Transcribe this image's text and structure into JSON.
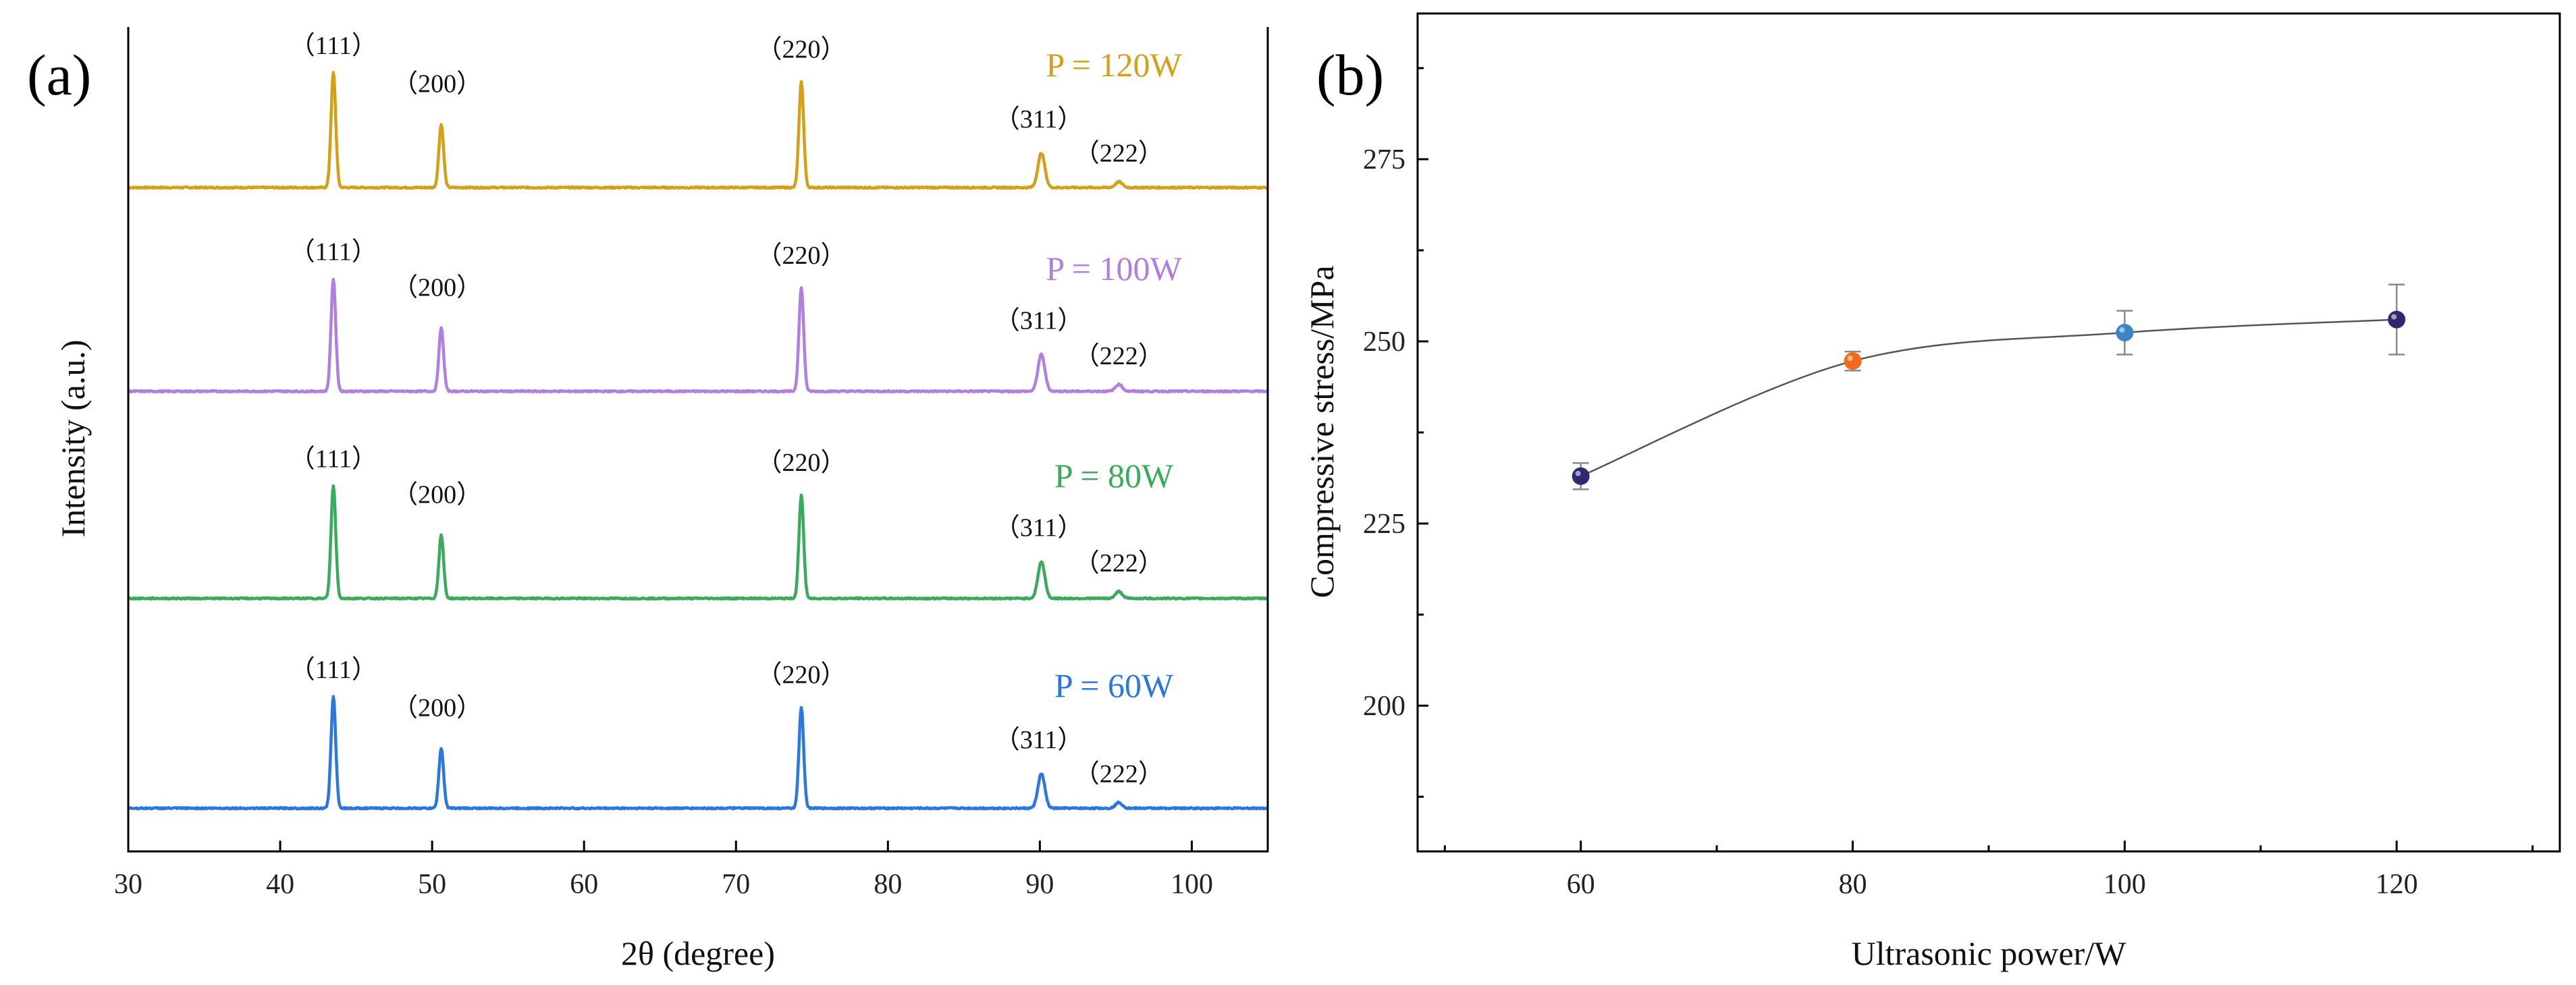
{
  "chart_data": [
    {
      "type": "line",
      "panel_label": "(a)",
      "xlabel": "2θ (degree)",
      "ylabel": "Intensity (a.u.)",
      "xlim": [
        30,
        105
      ],
      "xticks": [
        30,
        40,
        50,
        60,
        70,
        80,
        90,
        100
      ],
      "xtick_labels": [
        "30",
        "40",
        "50",
        "60",
        "70",
        "80",
        "90",
        "100"
      ],
      "series": [
        {
          "name": "P = 120W",
          "color": "#d4a017",
          "peaks": [
            {
              "x": 43.5,
              "height": 1.0,
              "label": "（111）"
            },
            {
              "x": 50.6,
              "height": 0.55,
              "label": "（200）"
            },
            {
              "x": 74.3,
              "height": 0.92,
              "label": "（220）"
            },
            {
              "x": 90.1,
              "height": 0.3,
              "label": "（311）"
            },
            {
              "x": 95.2,
              "height": 0.05,
              "label": "（222）"
            }
          ]
        },
        {
          "name": "P = 100W",
          "color": "#b07fe0",
          "peaks": [
            {
              "x": 43.5,
              "height": 0.98,
              "label": "（111）"
            },
            {
              "x": 50.6,
              "height": 0.55,
              "label": "（200）"
            },
            {
              "x": 74.3,
              "height": 0.9,
              "label": "（220）"
            },
            {
              "x": 90.1,
              "height": 0.32,
              "label": "（311）"
            },
            {
              "x": 95.2,
              "height": 0.06,
              "label": "（222）"
            }
          ]
        },
        {
          "name": "P = 80W",
          "color": "#3aaa5c",
          "peaks": [
            {
              "x": 43.5,
              "height": 0.98,
              "label": "（111）"
            },
            {
              "x": 50.6,
              "height": 0.55,
              "label": "（200）"
            },
            {
              "x": 74.3,
              "height": 0.9,
              "label": "（220）"
            },
            {
              "x": 90.1,
              "height": 0.32,
              "label": "（311）"
            },
            {
              "x": 95.2,
              "height": 0.06,
              "label": "（222）"
            }
          ]
        },
        {
          "name": "P = 60W",
          "color": "#2a77e0",
          "peaks": [
            {
              "x": 43.5,
              "height": 0.97,
              "label": "（111）"
            },
            {
              "x": 50.6,
              "height": 0.52,
              "label": "（200）"
            },
            {
              "x": 74.3,
              "height": 0.88,
              "label": "（220）"
            },
            {
              "x": 90.1,
              "height": 0.3,
              "label": "（311）"
            },
            {
              "x": 95.2,
              "height": 0.05,
              "label": "（222）"
            }
          ]
        }
      ]
    },
    {
      "type": "scatter",
      "panel_label": "(b)",
      "xlabel": "Ultrasonic power/W",
      "ylabel": "Compressive stress/MPa",
      "xlim": [
        48,
        132
      ],
      "ylim": [
        180,
        295
      ],
      "xticks": [
        60,
        80,
        100,
        120
      ],
      "yticks": [
        200,
        225,
        250,
        275
      ],
      "xtick_labels": [
        "60",
        "80",
        "100",
        "120"
      ],
      "ytick_labels": [
        "200",
        "225",
        "250",
        "275"
      ],
      "x": [
        60,
        80,
        100,
        120
      ],
      "y": [
        231.5,
        247.3,
        251.2,
        253.0
      ],
      "error": [
        1.8,
        1.3,
        3.0,
        4.8
      ],
      "point_colors": [
        "#2e2a6e",
        "#f26a1b",
        "#3a86c8",
        "#2e2a6e"
      ],
      "line_color": "#555555"
    }
  ]
}
